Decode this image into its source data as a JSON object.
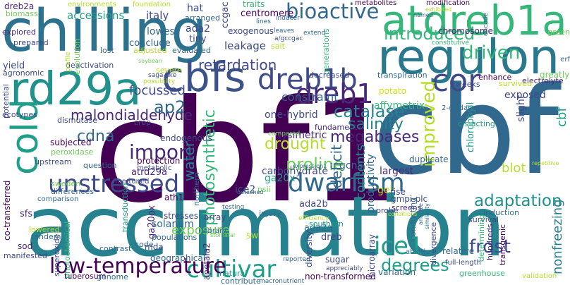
{
  "colors": {
    "background": "#ffffff",
    "palette": [
      "#440154",
      "#482878",
      "#3e4a89",
      "#31688e",
      "#26828e",
      "#1f9e89",
      "#35b779",
      "#6ece58",
      "#b5de2b",
      "#d4e21b"
    ]
  },
  "words": [
    {
      "text": "cbf1",
      "color": "#440154"
    },
    {
      "text": "cbf",
      "color": "#31688e"
    },
    {
      "text": "acclimation",
      "color": "#26828e"
    },
    {
      "text": "chilling",
      "color": "#2c728e"
    },
    {
      "text": "regulon",
      "color": "#2a788e"
    },
    {
      "text": "atdreb1a",
      "color": "#35b779"
    },
    {
      "text": "rd29a",
      "color": "#21918c"
    },
    {
      "text": "cbfs",
      "color": "#3b528b"
    },
    {
      "text": "cold",
      "color": "#1f9e89"
    },
    {
      "text": "cor",
      "color": "#3e4a89"
    },
    {
      "text": "dreb1b",
      "color": "#3e4a89"
    },
    {
      "text": "dreb1",
      "color": "#482878"
    },
    {
      "text": "cultivar",
      "color": "#1f9e89"
    },
    {
      "text": "ice1",
      "color": "#1f9e89"
    },
    {
      "text": "dwarfism",
      "color": "#31688e"
    },
    {
      "text": "unstressed",
      "color": "#3e4a89"
    },
    {
      "text": "import",
      "color": "#482878"
    },
    {
      "text": "low-temperature",
      "color": "#440154"
    },
    {
      "text": "bioactive",
      "color": "#31688e"
    },
    {
      "text": "introduced",
      "color": "#35b779"
    },
    {
      "text": "driven",
      "color": "#35b779"
    },
    {
      "text": "improved",
      "color": "#b5de2b"
    },
    {
      "text": "catalase",
      "color": "#26828e"
    },
    {
      "text": "frost",
      "color": "#3e4a89"
    },
    {
      "text": "adaptation",
      "color": "#21918c"
    },
    {
      "text": "degrees",
      "color": "#1f9e89"
    },
    {
      "text": "proline",
      "color": "#6ece58"
    },
    {
      "text": "drought",
      "color": "#b5de2b"
    },
    {
      "text": "malondialdehyde",
      "color": "#482878"
    },
    {
      "text": "salinity",
      "color": "#26828e"
    },
    {
      "text": "megabases",
      "color": "#482878"
    },
    {
      "text": "ap2",
      "color": "#31688e"
    },
    {
      "text": "retardation",
      "color": "#3e4a89"
    },
    {
      "text": "cdna",
      "color": "#31688e"
    },
    {
      "text": "photosynthetic",
      "color": "#35b779"
    },
    {
      "text": "water",
      "color": "#26828e"
    },
    {
      "text": "deficit",
      "color": "#31688e"
    },
    {
      "text": "contents",
      "color": "#21918c"
    },
    {
      "text": "focussed",
      "color": "#3e4a89"
    },
    {
      "text": "constraint",
      "color": "#31688e"
    },
    {
      "text": "exposure",
      "color": "#6ece58"
    },
    {
      "text": "blot",
      "color": "#b5de2b"
    },
    {
      "text": "nonfreezing",
      "color": "#26828e"
    },
    {
      "text": "cbf",
      "color": "#1f9e89"
    },
    {
      "text": "one-hybrid",
      "color": "#3e4a89"
    },
    {
      "text": "exposed",
      "color": "#3e4a89"
    },
    {
      "text": "affymetrix",
      "color": "#35b779"
    },
    {
      "text": "lysimetric",
      "color": "#482878"
    },
    {
      "text": "carbohydrate",
      "color": "#3e4a89"
    },
    {
      "text": "leakage",
      "color": "#3e4a89"
    },
    {
      "text": "accessions",
      "color": "#1f9e89"
    },
    {
      "text": "italy",
      "color": "#3e4a89"
    },
    {
      "text": "ada2",
      "color": "#3e4a89"
    },
    {
      "text": "lowest",
      "color": "#31688e"
    },
    {
      "text": "conclude",
      "color": "#31688e"
    },
    {
      "text": "tiny",
      "color": "#3e4a89"
    },
    {
      "text": "hat",
      "color": "#3e4a89"
    },
    {
      "text": "arranged",
      "color": "#31688e"
    },
    {
      "text": "ccgac",
      "color": "#3e4a89"
    },
    {
      "text": "centromere",
      "color": "#440154"
    },
    {
      "text": "traits",
      "color": "#35b779"
    },
    {
      "text": "exogenous",
      "color": "#3e4a89"
    },
    {
      "text": "chromosome",
      "color": "#482878"
    },
    {
      "text": "dreb2a",
      "color": "#482878"
    },
    {
      "text": "biomass",
      "color": "#6ece58"
    },
    {
      "text": "environments",
      "color": "#b5de2b"
    },
    {
      "text": "foundation",
      "color": "#b5de2b"
    },
    {
      "text": "metabolites",
      "color": "#440154"
    },
    {
      "text": "modification",
      "color": "#440154"
    },
    {
      "text": "explored",
      "color": "#482878"
    },
    {
      "text": "prepared",
      "color": "#3e4a89"
    },
    {
      "text": "yield",
      "color": "#3e4a89"
    },
    {
      "text": "agronomic",
      "color": "#3e4a89"
    },
    {
      "text": "deactivation",
      "color": "#3e4a89"
    },
    {
      "text": "evaluated",
      "color": "#31688e"
    },
    {
      "text": "adjusted",
      "color": "#b5de2b"
    },
    {
      "text": "lost",
      "color": "#31688e"
    },
    {
      "text": "evolution",
      "color": "#6ece58"
    },
    {
      "text": "salt",
      "color": "#b5de2b"
    },
    {
      "text": "generations",
      "color": "#35b779"
    },
    {
      "text": "constitutive",
      "color": "#35b779"
    },
    {
      "text": "green",
      "color": "#6ece58"
    },
    {
      "text": "enhance",
      "color": "#440154"
    },
    {
      "text": "electrolyte",
      "color": "#482878"
    },
    {
      "text": "weeks",
      "color": "#3e4a89"
    },
    {
      "text": "potato",
      "color": "#d4e21b"
    },
    {
      "text": "transpiration",
      "color": "#31688e"
    },
    {
      "text": "decreased",
      "color": "#3e4a89"
    },
    {
      "text": "greatly",
      "color": "#6ece58"
    },
    {
      "text": "survived",
      "color": "#b5de2b"
    },
    {
      "text": "subjected",
      "color": "#440154"
    },
    {
      "text": "peroxidase",
      "color": "#6ece58"
    },
    {
      "text": "upstream",
      "color": "#3e4a89"
    },
    {
      "text": "question",
      "color": "#31688e"
    },
    {
      "text": "differences",
      "color": "#31688e"
    },
    {
      "text": "sweden",
      "color": "#6ece58"
    },
    {
      "text": "comparison",
      "color": "#31688e"
    },
    {
      "text": "atrd29a",
      "color": "#482878"
    },
    {
      "text": "protection",
      "color": "#440154"
    },
    {
      "text": "metabolic",
      "color": "#3e4a89"
    },
    {
      "text": "endogenous",
      "color": "#3e4a89"
    },
    {
      "text": "crop",
      "color": "#3e4a89"
    },
    {
      "text": "northern",
      "color": "#31688e"
    },
    {
      "text": "ga20x",
      "color": "#1f9e89"
    },
    {
      "text": "gcn5",
      "color": "#31688e"
    },
    {
      "text": "ice2",
      "color": "#3e4a89"
    },
    {
      "text": "psii",
      "color": "#6ece58"
    },
    {
      "text": "injury",
      "color": "#31688e"
    },
    {
      "text": "largest",
      "color": "#482878"
    },
    {
      "text": "duplicate",
      "color": "#31688e"
    },
    {
      "text": "gel",
      "color": "#b5de2b"
    },
    {
      "text": "rise",
      "color": "#3e4a89"
    },
    {
      "text": "gmpi-plc",
      "color": "#3e4a89"
    },
    {
      "text": "screens",
      "color": "#482878"
    },
    {
      "text": "fundamental",
      "color": "#482878"
    },
    {
      "text": "productivity",
      "color": "#31688e"
    },
    {
      "text": "probe",
      "color": "#3e4a89"
    },
    {
      "text": "chlorophyll",
      "color": "#1f9e89"
    },
    {
      "text": "slight",
      "color": "#3e4a89"
    },
    {
      "text": "sugar",
      "color": "#3e4a89"
    },
    {
      "text": "ada2b",
      "color": "#3e4a89"
    },
    {
      "text": "ada2a",
      "color": "#31688e"
    },
    {
      "text": "dreb",
      "color": "#3e4a89"
    },
    {
      "text": "array",
      "color": "#3e4a89"
    },
    {
      "text": "library",
      "color": "#31688e"
    },
    {
      "text": "stresses",
      "color": "#3e4a89"
    },
    {
      "text": "ga20ox",
      "color": "#482878"
    },
    {
      "text": "apetala2",
      "color": "#482878"
    },
    {
      "text": "solanum",
      "color": "#31688e"
    },
    {
      "text": "sw",
      "color": "#b5de2b"
    },
    {
      "text": "mda",
      "color": "#3e4a89"
    },
    {
      "text": "geographical",
      "color": "#31688e"
    },
    {
      "text": "tuberosum",
      "color": "#440154"
    },
    {
      "text": "non-transformed",
      "color": "#440154"
    },
    {
      "text": "diversity",
      "color": "#3e4a89"
    },
    {
      "text": "microarray",
      "color": "#3e4a89"
    },
    {
      "text": "southern",
      "color": "#1f9e89"
    },
    {
      "text": "variation",
      "color": "#31688e"
    },
    {
      "text": "relative",
      "color": "#31688e"
    },
    {
      "text": "full-length",
      "color": "#3e4a89"
    },
    {
      "text": "greenhouse",
      "color": "#35b779"
    },
    {
      "text": "validation",
      "color": "#b5de2b"
    },
    {
      "text": "transgenic",
      "color": "#440154"
    },
    {
      "text": "hundreds",
      "color": "#482878"
    },
    {
      "text": "survival",
      "color": "#3e4a89"
    },
    {
      "text": "induction",
      "color": "#31688e"
    },
    {
      "text": "determining",
      "color": "#35b779"
    },
    {
      "text": "conducting",
      "color": "#31688e"
    },
    {
      "text": "divergence",
      "color": "#3e4a89"
    },
    {
      "text": "abiotic",
      "color": "#31688e"
    },
    {
      "text": "ath1",
      "color": "#440154"
    },
    {
      "text": "sfs",
      "color": "#482878"
    },
    {
      "text": "lowered",
      "color": "#b5de2b"
    },
    {
      "text": "tandem",
      "color": "#31688e"
    },
    {
      "text": "sod",
      "color": "#482878"
    },
    {
      "text": "manifested",
      "color": "#3e4a89"
    },
    {
      "text": "superoxide",
      "color": "#3e4a89"
    },
    {
      "text": "photochemical",
      "color": "#35b779"
    },
    {
      "text": "contrast",
      "color": "#31688e"
    },
    {
      "text": "code",
      "color": "#31688e"
    },
    {
      "text": "populations",
      "color": "#31688e"
    },
    {
      "text": "genome",
      "color": "#31688e"
    },
    {
      "text": "contribute",
      "color": "#31688e"
    },
    {
      "text": "macronutrient",
      "color": "#31688e"
    },
    {
      "text": "natural",
      "color": "#1f9e89"
    },
    {
      "text": "co-transferred",
      "color": "#440154"
    },
    {
      "text": "potential",
      "color": "#3e4a89"
    },
    {
      "text": "ecotypes",
      "color": "#3e4a89"
    },
    {
      "text": "dismutase",
      "color": "#3e4a89"
    },
    {
      "text": "fine-tuned",
      "color": "#3e4a89"
    },
    {
      "text": "transduction",
      "color": "#1f9e89"
    },
    {
      "text": "severe",
      "color": "#b5de2b"
    },
    {
      "text": "possibility",
      "color": "#b5de2b"
    },
    {
      "text": "saga-like",
      "color": "#3e4a89"
    },
    {
      "text": "soybean",
      "color": "#6ece58"
    },
    {
      "text": "2-oxidase",
      "color": "#31688e"
    },
    {
      "text": "cis-acting",
      "color": "#1f9e89"
    },
    {
      "text": "erf",
      "color": "#31688e"
    },
    {
      "text": "repetitive",
      "color": "#b5de2b"
    },
    {
      "text": "efficiency",
      "color": "#b5de2b"
    },
    {
      "text": "appreciably",
      "color": "#3e4a89"
    },
    {
      "text": "reported",
      "color": "#31688e"
    },
    {
      "text": "testing",
      "color": "#31688e"
    },
    {
      "text": "expression1",
      "color": "#31688e"
    },
    {
      "text": "detached",
      "color": "#31688e"
    },
    {
      "text": "compared",
      "color": "#6ece58"
    },
    {
      "text": "leaves",
      "color": "#31688e"
    },
    {
      "text": "inducer",
      "color": "#31688e"
    },
    {
      "text": "lines",
      "color": "#31688e"
    },
    {
      "text": "extend",
      "color": "#31688e"
    },
    {
      "text": "profile",
      "color": "#b5de2b"
    },
    {
      "text": "a/gccgac",
      "color": "#3e4a89"
    },
    {
      "text": "named",
      "color": "#31688e"
    },
    {
      "text": "exhibited",
      "color": "#b5de2b"
    },
    {
      "text": "encode",
      "color": "#31688e"
    },
    {
      "text": "stomatal",
      "color": "#6ece58"
    },
    {
      "text": "conditions",
      "color": "#b5de2b"
    },
    {
      "text": "similarity",
      "color": "#31688e"
    },
    {
      "text": "analyze",
      "color": "#31688e"
    }
  ]
}
